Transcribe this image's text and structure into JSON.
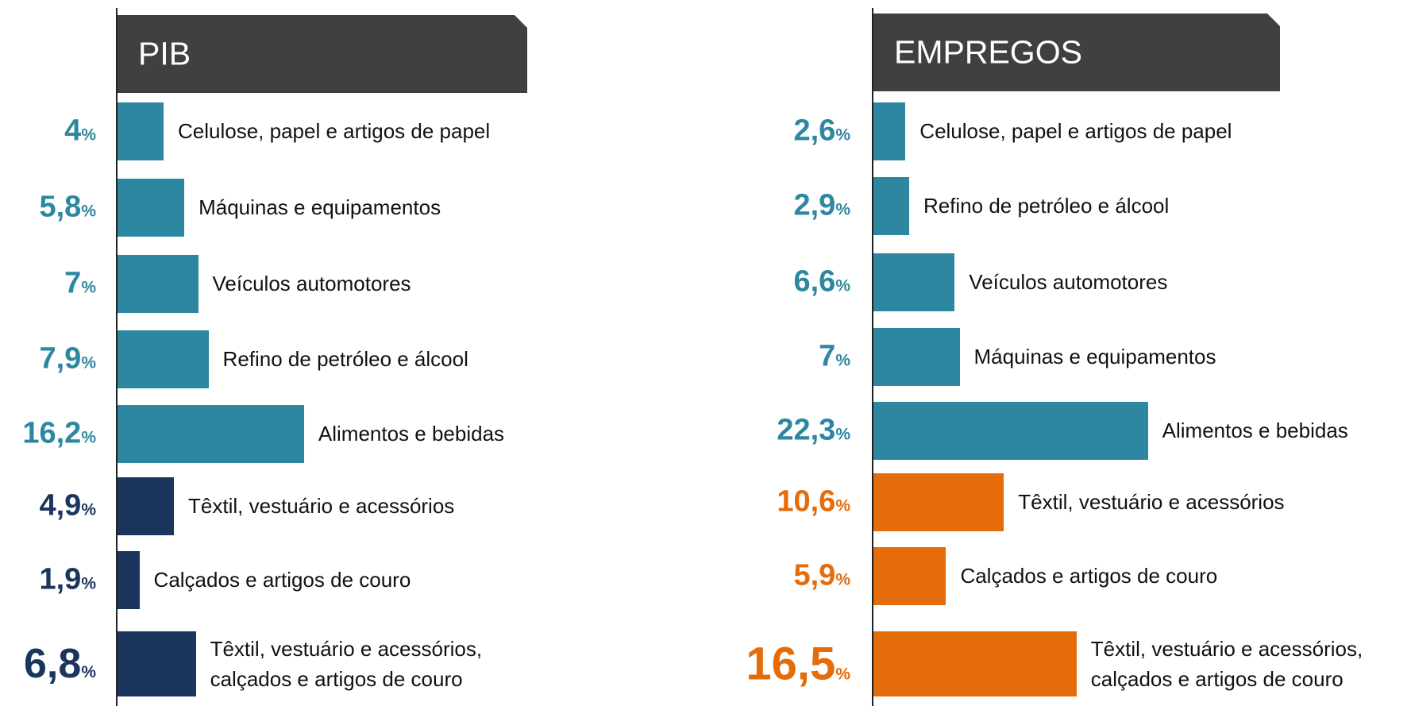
{
  "chart_data": [
    {
      "type": "bar",
      "title": "PIB",
      "categories": [
        "Celulose, papel e artigos de papel",
        "Máquinas e equipamentos",
        "Veículos  automotores",
        "Refino de petróleo e álcool",
        "Alimentos e bebidas",
        "Têxtil, vestuário e acessórios",
        "Calçados e artigos de couro",
        "Têxtil, vestuário e acessórios,\ncalçados e artigos de couro"
      ],
      "values": [
        4,
        5.8,
        7,
        7.9,
        16.2,
        4.9,
        1.9,
        6.8
      ],
      "value_labels": [
        "4",
        "5,8",
        "7",
        "7,9",
        "16,2",
        "4,9",
        "1,9",
        "6,8"
      ],
      "value_unit": "%",
      "colors": [
        "#2e87a0",
        "#2e87a0",
        "#2e87a0",
        "#2e87a0",
        "#2e87a0",
        "#1b365d",
        "#1b365d",
        "#1b365d"
      ]
    },
    {
      "type": "bar",
      "title": "EMPREGOS",
      "categories": [
        "Celulose, papel e artigos de papel",
        "Refino de petróleo e álcool",
        "Veículos  automotores",
        "Máquinas e equipamentos",
        "Alimentos e bebidas",
        "Têxtil, vestuário e acessórios",
        "Calçados e artigos de couro",
        "Têxtil, vestuário e acessórios,\ncalçados e artigos de couro"
      ],
      "values": [
        2.6,
        2.9,
        6.6,
        7,
        22.3,
        10.6,
        5.9,
        16.5
      ],
      "value_labels": [
        "2,6",
        "2,9",
        "6,6",
        "7",
        "22,3",
        "10,6",
        "5,9",
        "16,5"
      ],
      "value_unit": "%",
      "colors": [
        "#2e87a0",
        "#2e87a0",
        "#2e87a0",
        "#2e87a0",
        "#2e87a0",
        "#e46c0a",
        "#e46c0a",
        "#e46c0a"
      ]
    }
  ]
}
